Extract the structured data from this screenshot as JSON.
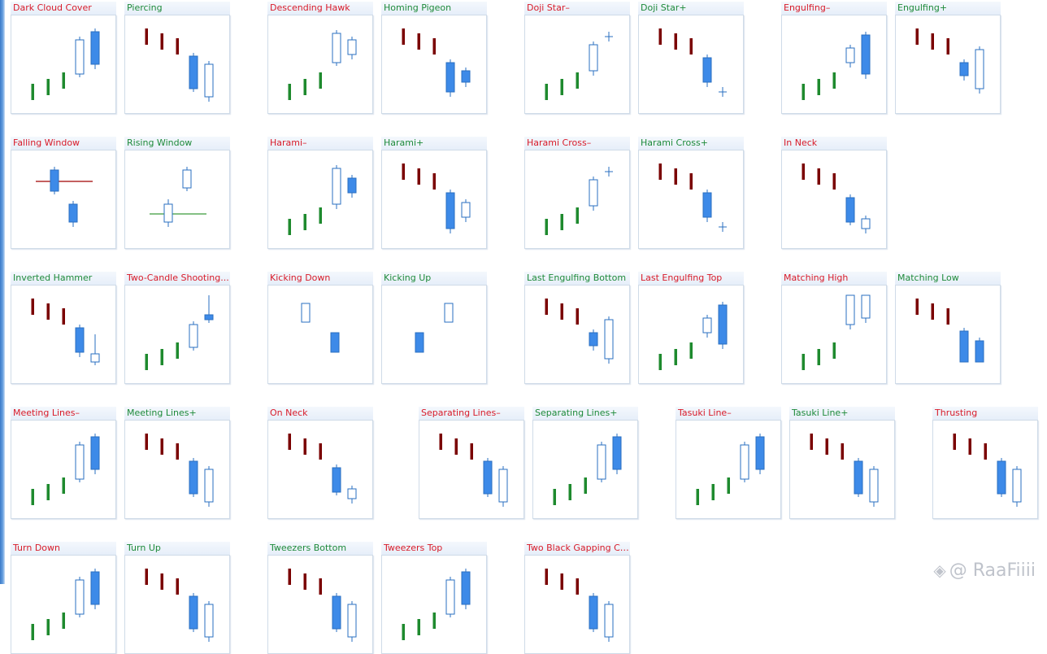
{
  "colors": {
    "bullish_candle": "#3d8ae8",
    "bearish_candle_fill": "#3d8ae8",
    "trend_down_bar": "#7a0000",
    "trend_up_bar": "#1e8a2e",
    "title_bearish": "#d81b29",
    "title_bullish": "#1e8a3a",
    "window_line_falling": "#a00000",
    "window_line_rising": "#3a9a3a"
  },
  "watermark": {
    "logo_icon": "diamond-logo-icon",
    "text": "@ RaaFiiii"
  },
  "patterns": [
    {
      "title": "Dark Cloud Cover",
      "tone": "bear",
      "kind": "up2"
    },
    {
      "title": "Piercing",
      "tone": "bull",
      "kind": "down2"
    },
    {
      "title": "Descending Hawk",
      "tone": "bear",
      "kind": "up_inside"
    },
    {
      "title": "Homing Pigeon",
      "tone": "bull",
      "kind": "down_inside"
    },
    {
      "title": "Doji Star–",
      "tone": "bear",
      "kind": "up_doji"
    },
    {
      "title": "Doji Star+",
      "tone": "bull",
      "kind": "down_doji"
    },
    {
      "title": "Engulfing–",
      "tone": "bear",
      "kind": "up_engulf"
    },
    {
      "title": "Engulfing+",
      "tone": "bull",
      "kind": "down_engulf"
    },
    {
      "title": "Falling Window",
      "tone": "bear",
      "kind": "falling_window"
    },
    {
      "title": "Rising Window",
      "tone": "bull",
      "kind": "rising_window"
    },
    {
      "title": "Harami–",
      "tone": "bear",
      "kind": "up_harami"
    },
    {
      "title": "Harami+",
      "tone": "bull",
      "kind": "down_harami"
    },
    {
      "title": "Harami Cross–",
      "tone": "bear",
      "kind": "up_doji"
    },
    {
      "title": "Harami Cross+",
      "tone": "bull",
      "kind": "down_doji"
    },
    {
      "title": "In Neck",
      "tone": "bear",
      "kind": "down_neck"
    },
    {
      "title": "Inverted Hammer",
      "tone": "bull",
      "kind": "down_hammer"
    },
    {
      "title": "Two-Candle Shooting...",
      "tone": "bear",
      "kind": "up_shooting"
    },
    {
      "title": "Kicking Down",
      "tone": "bear",
      "kind": "kick_down"
    },
    {
      "title": "Kicking Up",
      "tone": "bull",
      "kind": "kick_up"
    },
    {
      "title": "Last Engulfing Bottom",
      "tone": "bull",
      "kind": "down_engulf"
    },
    {
      "title": "Last Engulfing Top",
      "tone": "bear",
      "kind": "up_engulf"
    },
    {
      "title": "Matching High",
      "tone": "bear",
      "kind": "up_match"
    },
    {
      "title": "Matching Low",
      "tone": "bull",
      "kind": "down_match"
    },
    {
      "title": "Meeting Lines–",
      "tone": "bear",
      "kind": "up2"
    },
    {
      "title": "Meeting Lines+",
      "tone": "bull",
      "kind": "down2"
    },
    {
      "title": "On Neck",
      "tone": "bear",
      "kind": "down_neck"
    },
    {
      "title": "Separating Lines–",
      "tone": "bear",
      "kind": "down2"
    },
    {
      "title": "Separating Lines+",
      "tone": "bull",
      "kind": "up2"
    },
    {
      "title": "Tasuki Line–",
      "tone": "bear",
      "kind": "up2"
    },
    {
      "title": "Tasuki Line+",
      "tone": "bull",
      "kind": "down2"
    },
    {
      "title": "Thrusting",
      "tone": "bear",
      "kind": "down2"
    },
    {
      "title": "Turn Down",
      "tone": "bear",
      "kind": "up2"
    },
    {
      "title": "Turn Up",
      "tone": "bull",
      "kind": "down2"
    },
    {
      "title": "Tweezers Bottom",
      "tone": "bull",
      "kind": "down2"
    },
    {
      "title": "Tweezers Top",
      "tone": "bear",
      "kind": "up2"
    },
    {
      "title": "Two Black Gapping Ca...",
      "tone": "bear",
      "kind": "down2"
    }
  ]
}
